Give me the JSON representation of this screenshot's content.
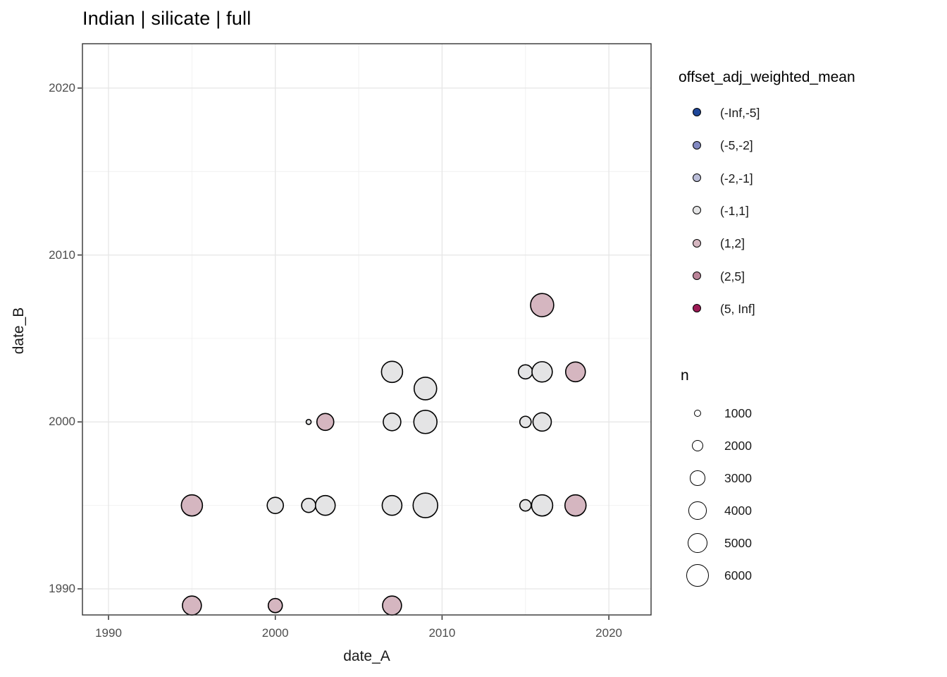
{
  "title": "Indian | silicate | full",
  "axes": {
    "x": {
      "label": "date_A",
      "tick_labels": [
        "1990",
        "2000",
        "2010",
        "2020"
      ]
    },
    "y": {
      "label": "date_B",
      "tick_labels": [
        "1990",
        "2000",
        "2010",
        "2020"
      ]
    }
  },
  "legend_color": {
    "title": "offset_adj_weighted_mean",
    "items": [
      {
        "label": "(-Inf,-5]",
        "color": "#1f4799"
      },
      {
        "label": "(-5,-2]",
        "color": "#8289c1"
      },
      {
        "label": "(-2,-1]",
        "color": "#babdd8"
      },
      {
        "label": "(-1,1]",
        "color": "#e4e4e5"
      },
      {
        "label": "(1,2]",
        "color": "#d5b6c0"
      },
      {
        "label": "(2,5]",
        "color": "#bb8499"
      },
      {
        "label": "(5, Inf]",
        "color": "#9c1b55"
      }
    ]
  },
  "legend_size": {
    "title": "n",
    "items": [
      {
        "label": "1000",
        "n": 1000
      },
      {
        "label": "2000",
        "n": 2000
      },
      {
        "label": "3000",
        "n": 3000
      },
      {
        "label": "4000",
        "n": 4000
      },
      {
        "label": "5000",
        "n": 5000
      },
      {
        "label": "6000",
        "n": 6000
      }
    ]
  },
  "chart_data": {
    "type": "scatter",
    "title": "Indian | silicate | full",
    "xlabel": "date_A",
    "ylabel": "date_B",
    "xlim": [
      1988.4,
      2022.6
    ],
    "ylim": [
      1988.4,
      2022.6
    ],
    "x_major_ticks": [
      1990,
      2000,
      2010,
      2020
    ],
    "x_minor_gridlines": [
      1995,
      2005,
      2015
    ],
    "y_major_ticks": [
      1990,
      2000,
      2010,
      2020
    ],
    "y_minor_gridlines": [
      1995,
      2005,
      2015
    ],
    "grid": true,
    "legend_position": "right",
    "color_variable": "offset_adj_weighted_mean",
    "size_variable": "n",
    "points": [
      {
        "x": 1995,
        "y": 1989,
        "n": 4450,
        "bin": "(1,2]"
      },
      {
        "x": 2000,
        "y": 1989,
        "n": 2700,
        "bin": "(1,2]"
      },
      {
        "x": 2007,
        "y": 1989,
        "n": 4450,
        "bin": "(1,2]"
      },
      {
        "x": 1995,
        "y": 1995,
        "n": 5350,
        "bin": "(1,2]"
      },
      {
        "x": 2000,
        "y": 1995,
        "n": 3400,
        "bin": "(-1,1]"
      },
      {
        "x": 2002,
        "y": 1995,
        "n": 2700,
        "bin": "(-1,1]"
      },
      {
        "x": 2003,
        "y": 1995,
        "n": 4750,
        "bin": "(-1,1]"
      },
      {
        "x": 2007,
        "y": 1995,
        "n": 4750,
        "bin": "(-1,1]"
      },
      {
        "x": 2009,
        "y": 1995,
        "n": 7000,
        "bin": "(-1,1]"
      },
      {
        "x": 2015,
        "y": 1995,
        "n": 1900,
        "bin": "(-1,1]"
      },
      {
        "x": 2016,
        "y": 1995,
        "n": 5350,
        "bin": "(-1,1]"
      },
      {
        "x": 2018,
        "y": 1995,
        "n": 5350,
        "bin": "(1,2]"
      },
      {
        "x": 2002,
        "y": 2000,
        "n": 600,
        "bin": "(-1,1]"
      },
      {
        "x": 2003,
        "y": 2000,
        "n": 3650,
        "bin": "(1,2]"
      },
      {
        "x": 2007,
        "y": 2000,
        "n": 3900,
        "bin": "(-1,1]"
      },
      {
        "x": 2009,
        "y": 2000,
        "n": 6300,
        "bin": "(-1,1]"
      },
      {
        "x": 2015,
        "y": 2000,
        "n": 1900,
        "bin": "(-1,1]"
      },
      {
        "x": 2016,
        "y": 2000,
        "n": 4200,
        "bin": "(-1,1]"
      },
      {
        "x": 2007,
        "y": 2003,
        "n": 5350,
        "bin": "(-1,1]"
      },
      {
        "x": 2009,
        "y": 2002,
        "n": 6000,
        "bin": "(-1,1]"
      },
      {
        "x": 2015,
        "y": 2003,
        "n": 2700,
        "bin": "(-1,1]"
      },
      {
        "x": 2016,
        "y": 2003,
        "n": 5000,
        "bin": "(-1,1]"
      },
      {
        "x": 2018,
        "y": 2003,
        "n": 4750,
        "bin": "(1,2]"
      },
      {
        "x": 2016,
        "y": 2007,
        "n": 6300,
        "bin": "(1,2]"
      }
    ]
  },
  "style_colors": {
    "panel_border": "#333333",
    "grid_major": "#e6e6e6",
    "grid_minor": "#f0f0f0",
    "point_stroke": "#000000",
    "tick_label": "#4d4d4d"
  }
}
